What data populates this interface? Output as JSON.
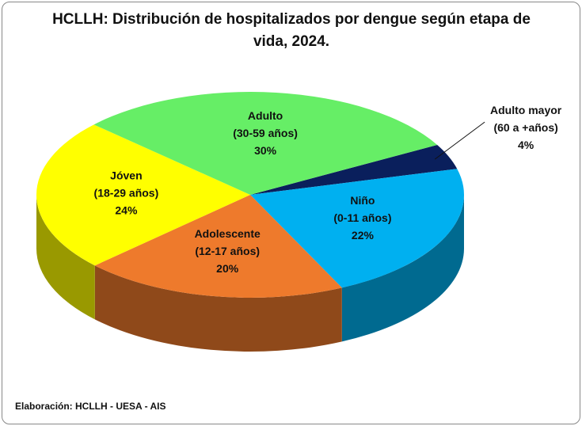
{
  "chart_data": {
    "type": "pie3d",
    "title": "HCLLH: Distribución de hospitalizados por dengue según etapa de vida, 2024.",
    "categories": [
      "Adulto mayor (60 a +años)",
      "Niño (0-11 años)",
      "Adolescente (12-17 años)",
      "Jóven (18-29 años)",
      "Adulto (30-59 años)"
    ],
    "values": [
      4,
      22,
      20,
      24,
      30
    ],
    "value_labels": [
      "4%",
      "22%",
      "20%",
      "24%",
      "30%"
    ],
    "colors": [
      "#0a1f5c",
      "#00b0f0",
      "#ee7a2c",
      "#ffff00",
      "#66ee66"
    ],
    "source": "Elaboración: HCLLH - UESA - AIS"
  }
}
